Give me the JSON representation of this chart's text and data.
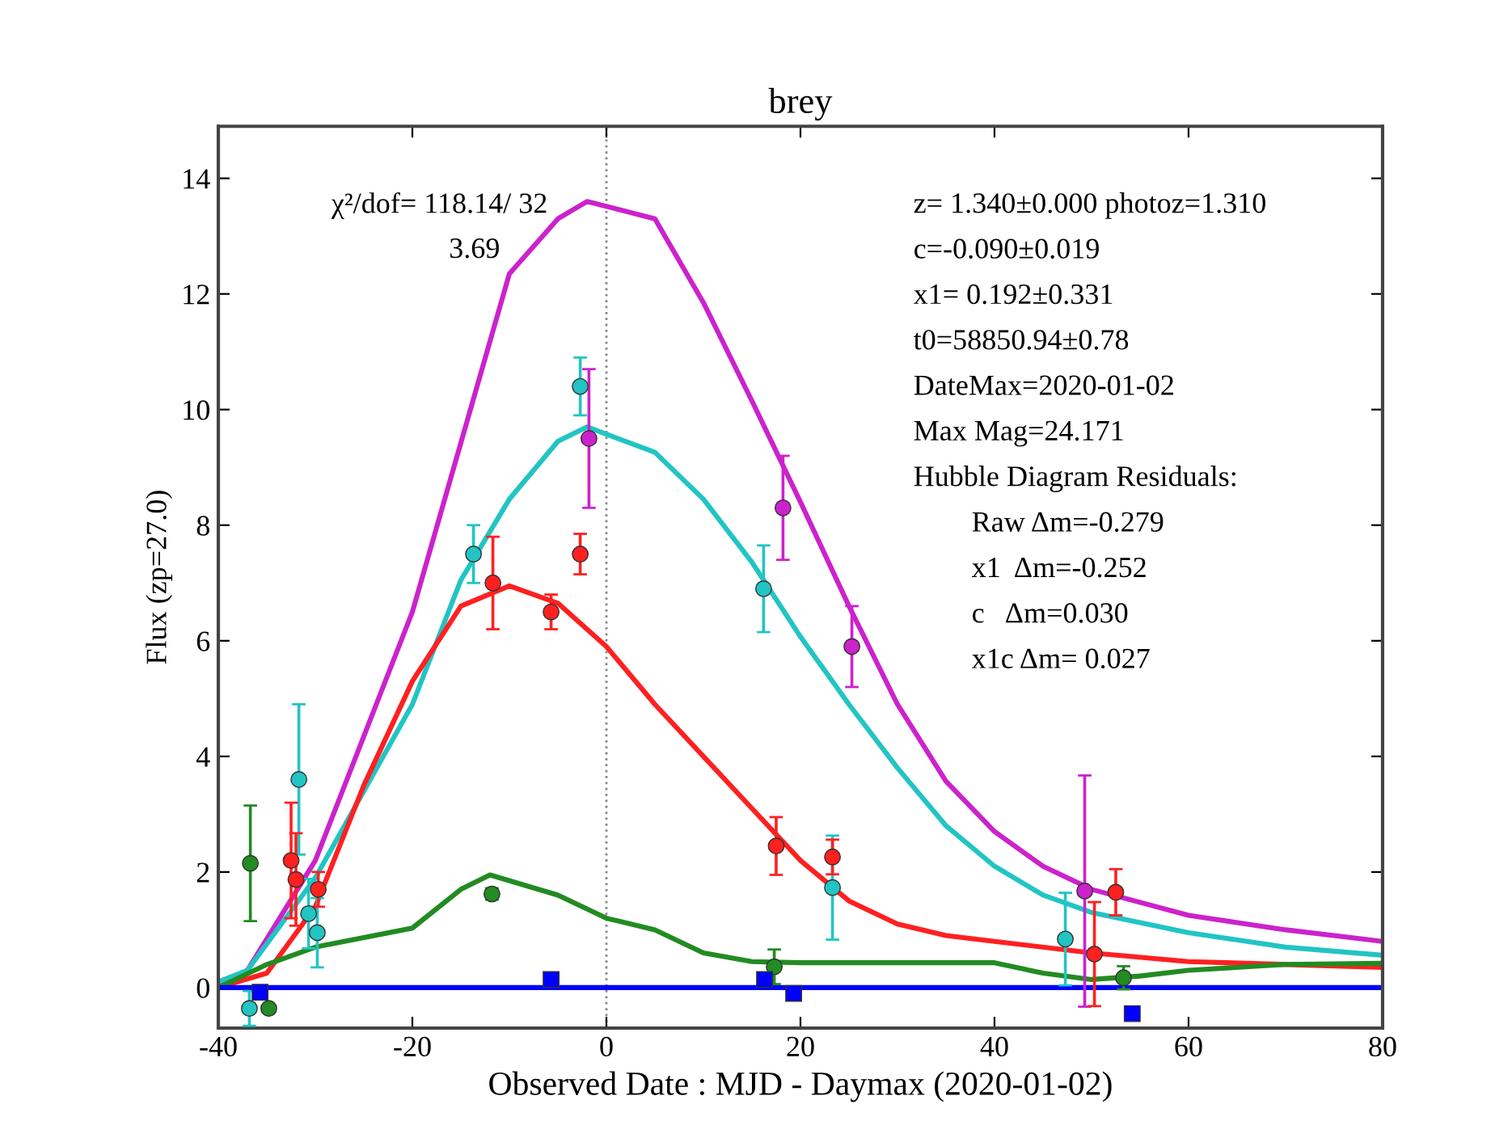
{
  "chart_data": {
    "type": "line",
    "title": "brey",
    "xlabel": "Observed Date : MJD - Daymax (2020-01-02)",
    "ylabel": "Flux (zp=27.0)",
    "xlim": [
      -40,
      80
    ],
    "xticks": [
      -40,
      -20,
      0,
      20,
      40,
      60,
      80
    ],
    "ylim": [
      -0.7,
      14.9
    ],
    "yticks": [
      0,
      2,
      4,
      6,
      8,
      10,
      12,
      14
    ],
    "grid": false,
    "legend": false,
    "ref_lines": [
      {
        "axis": "x",
        "value": 0,
        "color": "#888888",
        "line_style": "dotted"
      }
    ],
    "annotations": [
      "χ²/dof= 118.14/ 32",
      "3.69",
      "z= 1.340±0.000 photoz=1.310",
      "c=-0.090±0.019",
      "x1= 0.192±0.331",
      "t0=58850.94±0.78",
      "DateMax=2020-01-02",
      "Max Mag=24.171",
      "Hubble Diagram Residuals:",
      "Raw Δm=-0.279",
      "x1  Δm=-0.252",
      "c   Δm=0.030",
      "x1c Δm= 0.027"
    ],
    "series": [
      {
        "color": "#cc22cc",
        "x": [
          -40,
          -37,
          -30,
          -20,
          -10,
          -5,
          -2,
          5,
          10,
          15,
          20,
          25,
          30,
          35,
          40,
          45,
          50,
          60,
          70,
          80
        ],
        "values": [
          0.0,
          0.3,
          2.2,
          6.5,
          12.35,
          13.3,
          13.6,
          13.3,
          11.85,
          10.15,
          8.4,
          6.6,
          4.9,
          3.57,
          2.7,
          2.1,
          1.7,
          1.25,
          1.0,
          0.8
        ]
      },
      {
        "color": "#22c4c4",
        "x": [
          -40,
          -37,
          -30,
          -20,
          -15,
          -10,
          -5,
          -2,
          5,
          10,
          15,
          20,
          25,
          30,
          35,
          40,
          45,
          50,
          60,
          70,
          80
        ],
        "values": [
          0.1,
          0.3,
          1.9,
          4.9,
          7.05,
          8.45,
          9.45,
          9.7,
          9.26,
          8.45,
          7.36,
          6.07,
          4.9,
          3.8,
          2.8,
          2.1,
          1.6,
          1.3,
          0.95,
          0.7,
          0.56
        ]
      },
      {
        "color": "#ff2020",
        "x": [
          -40,
          -35,
          -30,
          -25,
          -20,
          -15,
          -10,
          -5,
          0,
          5,
          10,
          15,
          20,
          25,
          30,
          35,
          40,
          50,
          60,
          80
        ],
        "values": [
          0.0,
          0.25,
          1.4,
          3.5,
          5.3,
          6.6,
          6.95,
          6.65,
          5.9,
          4.9,
          4.0,
          3.1,
          2.2,
          1.5,
          1.1,
          0.9,
          0.8,
          0.6,
          0.45,
          0.35
        ]
      },
      {
        "color": "#228b22",
        "x": [
          -40,
          -35,
          -30,
          -20,
          -15,
          -12,
          -5,
          0,
          5,
          10,
          15,
          20,
          40,
          45,
          50,
          55,
          60,
          70,
          80
        ],
        "values": [
          0.0,
          0.4,
          0.7,
          1.03,
          1.7,
          1.95,
          1.6,
          1.2,
          1.0,
          0.6,
          0.45,
          0.43,
          0.43,
          0.25,
          0.14,
          0.2,
          0.3,
          0.4,
          0.42
        ]
      },
      {
        "color": "#0000ff",
        "x": [
          -40,
          80
        ],
        "values": [
          0,
          0
        ]
      },
      {
        "type": "scatter",
        "color": "#cc22cc",
        "marker": "circle",
        "x": [
          -1.8,
          18.2,
          25.3,
          49.3
        ],
        "values": [
          9.5,
          8.3,
          5.9,
          1.67
        ],
        "errors": [
          1.2,
          0.9,
          0.7,
          2.0
        ]
      },
      {
        "type": "scatter",
        "color": "#22c4c4",
        "marker": "circle",
        "x": [
          -36.8,
          -31.7,
          -30.7,
          -29.8,
          -13.7,
          -2.7,
          16.2,
          23.3,
          47.3
        ],
        "values": [
          -0.36,
          3.6,
          1.28,
          0.95,
          7.5,
          10.4,
          6.9,
          1.73,
          0.84
        ],
        "errors": [
          0.3,
          1.3,
          0.6,
          0.6,
          0.5,
          0.5,
          0.75,
          0.9,
          0.8
        ]
      },
      {
        "type": "scatter",
        "color": "#ff2020",
        "marker": "circle",
        "x": [
          -32.5,
          -32,
          -29.7,
          -11.7,
          -5.7,
          -2.7,
          17.5,
          23.3,
          50.3,
          52.5
        ],
        "values": [
          2.2,
          1.87,
          1.7,
          7.0,
          6.5,
          7.5,
          2.45,
          2.26,
          0.58,
          1.65
        ],
        "errors": [
          1.0,
          0.8,
          0.3,
          0.8,
          0.3,
          0.35,
          0.5,
          0.3,
          0.9,
          0.4
        ]
      },
      {
        "type": "scatter",
        "color": "#228b22",
        "marker": "circle",
        "x": [
          -36.7,
          -34.8,
          -11.8,
          17.3,
          53.3
        ],
        "values": [
          2.15,
          -0.36,
          1.62,
          0.36,
          0.17
        ],
        "errors": [
          1.0,
          null,
          0.1,
          0.3,
          0.2
        ]
      },
      {
        "type": "scatter",
        "color": "#0000ff",
        "marker": "square",
        "x": [
          -35.7,
          -5.7,
          16.3,
          19.3,
          54.2
        ],
        "values": [
          -0.08,
          0.14,
          0.14,
          -0.1,
          -0.45
        ],
        "errors": [
          null,
          null,
          null,
          null,
          0.1
        ]
      }
    ]
  }
}
